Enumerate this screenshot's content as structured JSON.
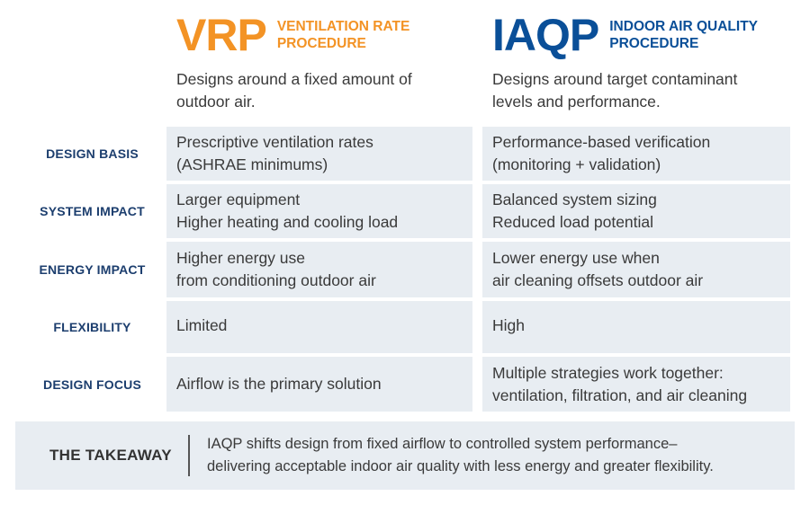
{
  "vrp": {
    "abbr": "VRP",
    "name_line1": "VENTILATION RATE",
    "name_line2": "PROCEDURE",
    "intro_line1": "Designs around a fixed amount of",
    "intro_line2": "outdoor air.",
    "color": "#f39325"
  },
  "iaqp": {
    "abbr": "IAQP",
    "name_line1": "INDOOR AIR QUALITY",
    "name_line2": "PROCEDURE",
    "intro_line1": "Designs around target contaminant",
    "intro_line2": "levels and performance.",
    "color": "#0a4f98"
  },
  "rows": [
    {
      "label": "DESIGN BASIS",
      "vrp": [
        "Prescriptive ventilation rates",
        "(ASHRAE minimums)"
      ],
      "iaqp": [
        "Performance-based verification",
        "(monitoring + validation)"
      ]
    },
    {
      "label": "SYSTEM IMPACT",
      "vrp": [
        "Larger equipment",
        "Higher heating and cooling load"
      ],
      "iaqp": [
        "Balanced system sizing",
        "Reduced load potential"
      ]
    },
    {
      "label": "ENERGY IMPACT",
      "vrp": [
        "Higher energy use",
        "from conditioning outdoor air"
      ],
      "iaqp": [
        "Lower energy use when",
        "air cleaning offsets outdoor air"
      ]
    },
    {
      "label": "FLEXIBILITY",
      "vrp": [
        "Limited"
      ],
      "iaqp": [
        "High"
      ]
    },
    {
      "label": "DESIGN FOCUS",
      "vrp": [
        "Airflow is the primary solution"
      ],
      "iaqp": [
        "Multiple strategies work together:",
        "ventilation, filtration, and air cleaning"
      ]
    }
  ],
  "takeaway": {
    "label": "THE TAKEAWAY",
    "line1": "IAQP shifts design from fixed airflow to controlled system performance–",
    "line2": "delivering acceptable indoor air quality with less energy and greater flexibility."
  },
  "colors": {
    "row_label": "#1c3e6e",
    "cell_bg": "#e8edf2"
  }
}
